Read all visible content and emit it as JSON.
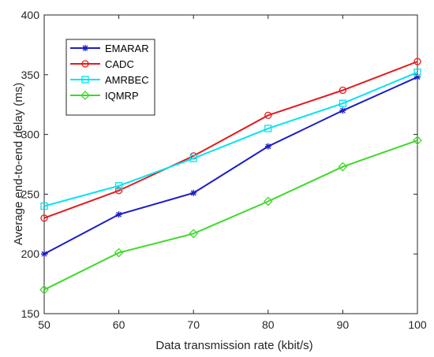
{
  "chart_data": {
    "type": "line",
    "title": "",
    "xlabel": "Data transmission rate (kbit/s)",
    "ylabel": "Average end-to-end delay (ms)",
    "xlim": [
      50,
      100
    ],
    "ylim": [
      150,
      400
    ],
    "x_ticks": [
      50,
      60,
      70,
      80,
      90,
      100
    ],
    "y_ticks": [
      150,
      200,
      250,
      300,
      350,
      400
    ],
    "grid": false,
    "legend_position": "upper-left",
    "x": [
      50,
      60,
      70,
      80,
      90,
      100
    ],
    "series": [
      {
        "name": "EMARAR",
        "color": "#1c1cc8",
        "marker": "asterisk",
        "values": [
          200,
          233,
          251,
          290,
          320,
          348
        ]
      },
      {
        "name": "CADC",
        "color": "#e41a1c",
        "marker": "circle",
        "values": [
          230,
          253,
          282,
          316,
          337,
          361
        ]
      },
      {
        "name": "AMRBEC",
        "color": "#00e5ee",
        "marker": "square",
        "values": [
          240,
          257,
          280,
          305,
          326,
          352
        ]
      },
      {
        "name": "IQMRP",
        "color": "#3fd92a",
        "marker": "diamond",
        "values": [
          170,
          201,
          217,
          244,
          273,
          295
        ]
      }
    ]
  }
}
